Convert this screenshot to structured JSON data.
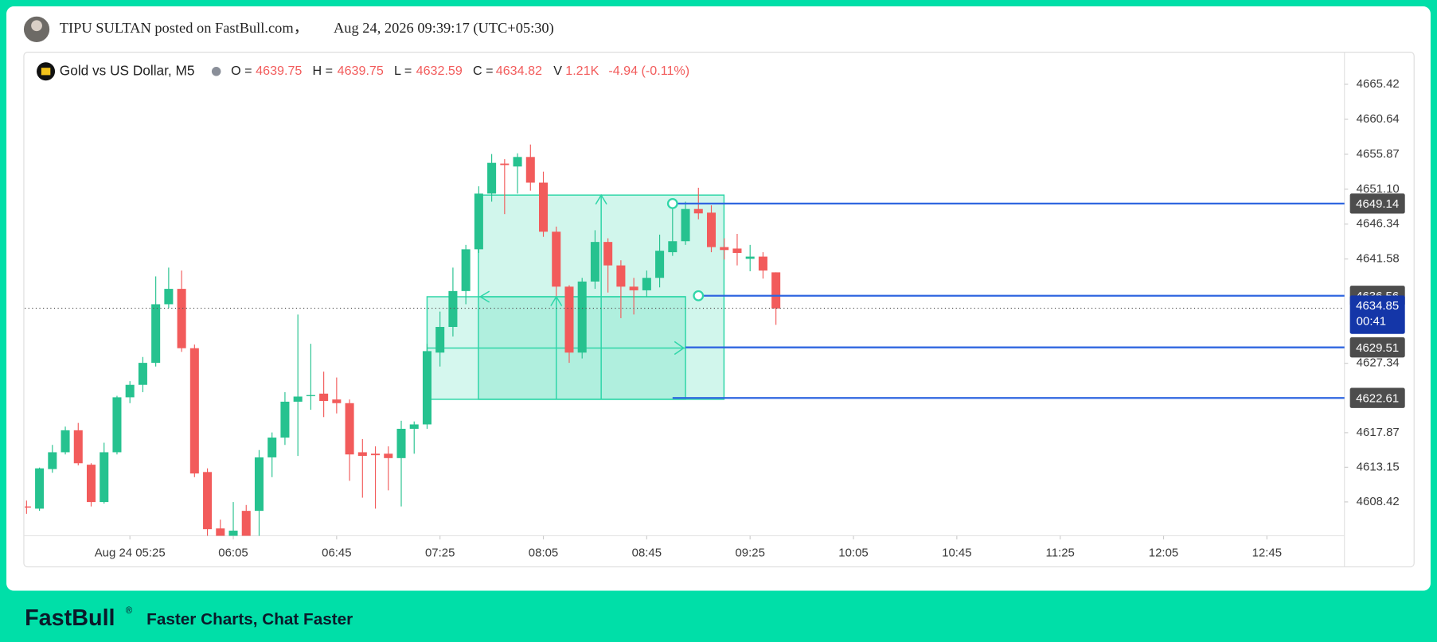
{
  "header": {
    "author_line": "TIPU SULTAN posted on FastBull.com，",
    "timestamp": "Aug 24, 2026 09:39:17 (UTC+05:30)"
  },
  "chart_data": {
    "type": "candlestick",
    "title": "Gold vs US Dollar, M5",
    "legend_stats": [
      {
        "name": "O =",
        "value": 4639.75
      },
      {
        "name": "H =",
        "value": 4639.75
      },
      {
        "name": "L =",
        "value": 4632.59
      },
      {
        "name": "C =",
        "value": 4634.82
      },
      {
        "name": "V",
        "value": 1210,
        "label": "1.21K"
      }
    ],
    "change": "-4.94 (-0.11%)",
    "open": [
      4607.8,
      4607.5,
      4612.9,
      4615.2,
      4618.2,
      4613.5,
      4608.4,
      4615.2,
      4622.7,
      4624.4,
      4627.4,
      4635.4,
      4637.5,
      4629.4,
      4612.5,
      4604.8,
      4603.5,
      4607.2,
      4607.2,
      4614.5,
      4617.2,
      4622.1,
      4622.9,
      4623.2,
      4622.4,
      4621.9,
      4615.2,
      4615.0,
      4615.0,
      4614.4,
      4618.4,
      4619.0,
      4628.8,
      4632.3,
      4637.2,
      4642.9,
      4650.5,
      4654.6,
      4654.2,
      4655.5,
      4652.0,
      4645.3,
      4637.8,
      4628.8,
      4638.5,
      4643.9,
      4640.7,
      4637.8,
      4637.3,
      4639.0,
      4642.5,
      4644.0,
      4648.4,
      4647.9,
      4643.2,
      4643.0,
      4641.6,
      4641.9,
      4639.75
    ],
    "high": [
      4608.6,
      4613.1,
      4616.2,
      4618.7,
      4619.2,
      4613.7,
      4616.5,
      4622.9,
      4624.9,
      4628.2,
      4639.2,
      4640.4,
      4640.0,
      4629.9,
      4613.0,
      4606.0,
      4608.4,
      4608.0,
      4615.5,
      4617.9,
      4623.4,
      4634.0,
      4630.0,
      4626.2,
      4625.4,
      4622.4,
      4617.0,
      4616.0,
      4616.0,
      4619.5,
      4619.4,
      4630.0,
      4634.4,
      4640.4,
      4643.5,
      4651.5,
      4655.9,
      4655.2,
      4656.0,
      4657.2,
      4653.5,
      4646.0,
      4638.0,
      4639.0,
      4645.5,
      4644.4,
      4641.4,
      4639.0,
      4640.0,
      4644.9,
      4648.8,
      4649.4,
      4651.3,
      4648.9,
      4644.4,
      4645.0,
      4643.5,
      4642.5,
      4639.75
    ],
    "low": [
      4606.8,
      4607.2,
      4612.4,
      4614.9,
      4613.4,
      4607.8,
      4608.2,
      4614.9,
      4621.9,
      4623.4,
      4626.9,
      4634.9,
      4628.9,
      4611.8,
      4603.0,
      4603.0,
      4603.0,
      4602.5,
      4603.0,
      4611.8,
      4616.2,
      4614.7,
      4621.0,
      4620.0,
      4620.5,
      4611.3,
      4609.0,
      4607.5,
      4610.0,
      4607.8,
      4615.0,
      4618.4,
      4626.9,
      4631.0,
      4635.4,
      4642.4,
      4649.4,
      4647.7,
      4650.5,
      4650.9,
      4644.6,
      4636.5,
      4627.4,
      4628.0,
      4637.5,
      4637.0,
      4633.5,
      4634.0,
      4636.4,
      4637.7,
      4642.0,
      4643.5,
      4647.0,
      4642.5,
      4641.5,
      4640.7,
      4639.9,
      4638.9,
      4632.59
    ],
    "close": [
      4607.8,
      4613.0,
      4615.2,
      4618.2,
      4613.7,
      4608.4,
      4615.2,
      4622.7,
      4624.4,
      4627.4,
      4635.4,
      4637.5,
      4629.4,
      4612.3,
      4604.7,
      4603.4,
      4604.5,
      4603.2,
      4614.5,
      4617.2,
      4622.1,
      4622.8,
      4623.0,
      4622.2,
      4621.9,
      4614.9,
      4614.7,
      4614.8,
      4614.4,
      4618.4,
      4619.0,
      4629.0,
      4632.3,
      4637.2,
      4642.9,
      4650.5,
      4654.7,
      4654.4,
      4655.5,
      4652.0,
      4645.3,
      4637.8,
      4628.8,
      4638.5,
      4643.9,
      4640.7,
      4637.8,
      4637.3,
      4639.0,
      4642.7,
      4644.0,
      4648.4,
      4647.8,
      4643.2,
      4642.8,
      4642.4,
      4641.9,
      4640.0,
      4634.82
    ],
    "up_color": "#26c28f",
    "down_color": "#f25b5b",
    "xlim": [
      -0.14,
      102
    ],
    "xticks": [
      {
        "value": 8,
        "label": "Aug 24 05:25"
      },
      {
        "value": 16,
        "label": "06:05"
      },
      {
        "value": 24,
        "label": "06:45"
      },
      {
        "value": 32,
        "label": "07:25"
      },
      {
        "value": 40,
        "label": "08:05"
      },
      {
        "value": 48,
        "label": "08:45"
      },
      {
        "value": 56,
        "label": "09:25"
      },
      {
        "value": 64,
        "label": "10:05"
      },
      {
        "value": 72,
        "label": "10:45"
      },
      {
        "value": 80,
        "label": "11:25"
      },
      {
        "value": 88,
        "label": "12:05"
      },
      {
        "value": 96,
        "label": "12:45"
      }
    ],
    "ylim": [
      4603.8,
      4669.8
    ],
    "yticks": [
      4608.42,
      4613.15,
      4617.87,
      4627.34,
      4641.58,
      4646.34,
      {
        "value": 4651.1,
        "label": "4651.10"
      },
      4655.87,
      4660.64,
      4665.42
    ],
    "grid": false,
    "price_lines": [
      4649.14,
      4636.56,
      4629.51,
      4622.61
    ],
    "line_color": "#2f66e0",
    "last_price": 4634.85,
    "countdown": "00:41"
  },
  "footer": {
    "brand": "FastBull",
    "mark": "®",
    "tagline": "Faster Charts, Chat Faster"
  }
}
